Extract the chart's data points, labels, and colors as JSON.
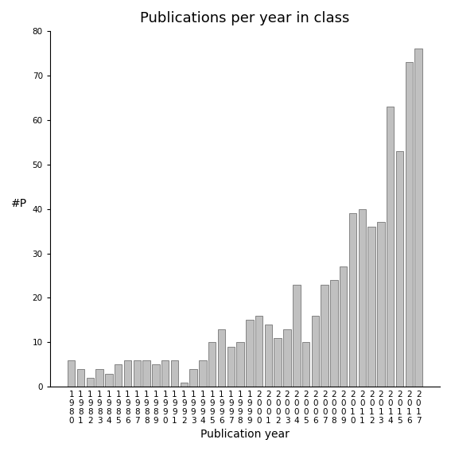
{
  "years": [
    "1980",
    "1981",
    "1982",
    "1983",
    "1984",
    "1985",
    "1986",
    "1987",
    "1988",
    "1989",
    "1990",
    "1991",
    "1992",
    "1993",
    "1994",
    "1995",
    "1996",
    "1997",
    "1998",
    "1999",
    "2000",
    "2001",
    "2002",
    "2003",
    "2004",
    "2005",
    "2006",
    "2007",
    "2008",
    "2009",
    "2010",
    "2011",
    "2012",
    "2013",
    "2014",
    "2015",
    "2016",
    "2017"
  ],
  "values": [
    6,
    4,
    2,
    4,
    3,
    5,
    6,
    6,
    6,
    5,
    6,
    6,
    1,
    4,
    6,
    10,
    13,
    9,
    10,
    15,
    16,
    14,
    11,
    13,
    23,
    10,
    16,
    23,
    24,
    27,
    39,
    40,
    36,
    37,
    63,
    53,
    73,
    76
  ],
  "title": "Publications per year in class",
  "xlabel": "Publication year",
  "ylabel": "#P",
  "ylim": [
    0,
    80
  ],
  "yticks": [
    0,
    10,
    20,
    30,
    40,
    50,
    60,
    70,
    80
  ],
  "bar_color": "#c0c0c0",
  "bar_edge_color": "#606060",
  "background_color": "#ffffff",
  "title_fontsize": 13,
  "label_fontsize": 10,
  "tick_fontsize": 7.5
}
